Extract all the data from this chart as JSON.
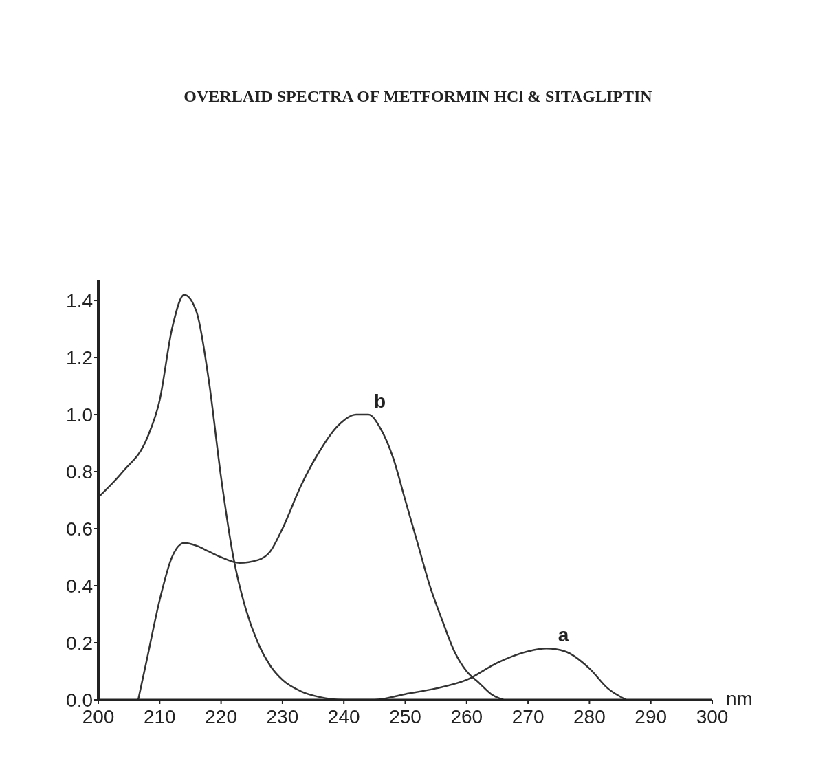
{
  "chart_data": {
    "type": "line",
    "title": "OVERLAID SPECTRA OF METFORMIN HCl & SITAGLIPTIN",
    "xlabel": "nm",
    "series": [
      {
        "color": "#333333",
        "x": [
          200,
          204,
          208,
          210,
          212,
          214,
          216,
          218,
          220,
          222,
          224,
          226,
          228,
          230,
          233,
          236,
          240,
          245,
          250,
          255,
          260,
          265,
          270,
          273,
          276,
          280,
          283,
          286
        ],
        "values": [
          0.71,
          0.8,
          0.92,
          1.05,
          1.3,
          1.42,
          1.36,
          1.12,
          0.78,
          0.5,
          0.32,
          0.2,
          0.12,
          0.07,
          0.03,
          0.01,
          0.0,
          0.0,
          0.02,
          0.04,
          0.07,
          0.13,
          0.17,
          0.18,
          0.17,
          0.11,
          0.04,
          0.0
        ]
      },
      {
        "color": "#333333",
        "x": [
          206.5,
          208,
          210,
          212,
          214,
          216,
          218,
          220,
          223,
          226,
          228,
          230,
          233,
          236,
          239,
          242,
          244,
          246,
          248,
          250,
          252,
          254,
          256,
          258,
          260,
          262,
          264,
          266
        ],
        "values": [
          0.0,
          0.15,
          0.35,
          0.5,
          0.55,
          0.54,
          0.52,
          0.5,
          0.48,
          0.49,
          0.52,
          0.6,
          0.75,
          0.87,
          0.96,
          1.0,
          1.0,
          0.95,
          0.85,
          0.7,
          0.55,
          0.4,
          0.28,
          0.17,
          0.1,
          0.06,
          0.02,
          0.0
        ]
      }
    ],
    "annotations": [
      {
        "text": "a",
        "x": 274,
        "y": 0.18
      },
      {
        "text": "b",
        "x": 244,
        "y": 1.0
      }
    ],
    "xlim": [
      200,
      300
    ],
    "xticks": [
      200,
      210,
      220,
      230,
      240,
      250,
      260,
      270,
      280,
      290,
      300
    ],
    "ylim": [
      0,
      1.47
    ],
    "yticks": [
      {
        "value": 0,
        "label": "0.0"
      },
      0.2,
      0.4,
      0.6,
      0.8,
      {
        "value": 1,
        "label": "1.0"
      },
      1.2,
      1.4
    ],
    "grid": false,
    "marker": "none",
    "line_style": "solid"
  }
}
